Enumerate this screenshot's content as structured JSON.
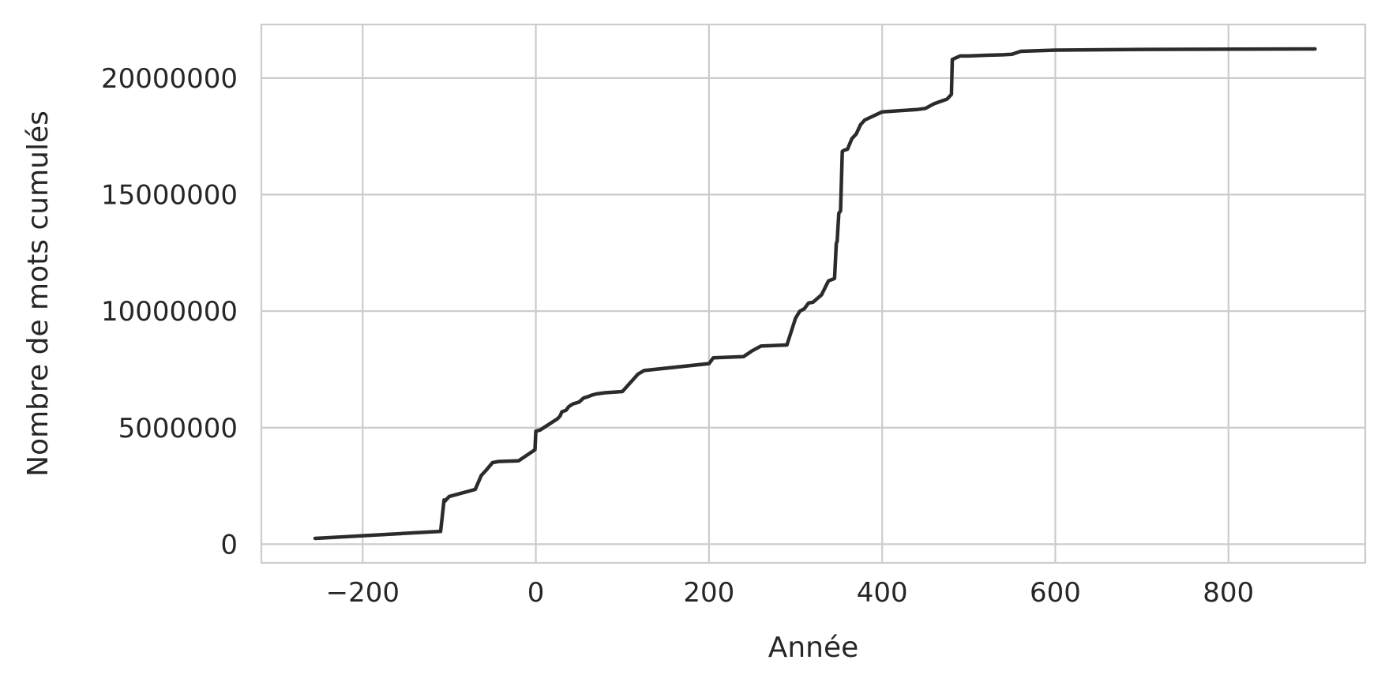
{
  "chart_data": {
    "type": "line",
    "title": "",
    "xlabel": "Année",
    "ylabel": "Nombre de mots cumulés",
    "xlim": [
      -317,
      958
    ],
    "ylim": [
      -800000,
      22300000
    ],
    "xticks": [
      -200,
      0,
      200,
      400,
      600,
      800
    ],
    "xtick_labels": [
      "−200",
      "0",
      "200",
      "400",
      "600",
      "800"
    ],
    "yticks": [
      0,
      5000000,
      10000000,
      15000000,
      20000000
    ],
    "ytick_labels": [
      "0",
      "5000000",
      "10000000",
      "15000000",
      "20000000"
    ],
    "grid": true,
    "legend": "none",
    "series": [
      {
        "color": "#2b2b2b",
        "x": [
          -255,
          -240,
          -110,
          -106,
          -105,
          -100,
          -90,
          -70,
          -63,
          -58,
          -50,
          -43,
          -20,
          -1,
          0,
          5,
          25,
          28,
          30,
          35,
          38,
          40,
          43,
          50,
          55,
          60,
          65,
          70,
          80,
          100,
          118,
          125,
          200,
          205,
          240,
          250,
          260,
          290,
          300,
          305,
          310,
          315,
          320,
          330,
          338,
          345,
          347,
          348,
          350,
          352,
          354,
          356,
          360,
          365,
          370,
          375,
          380,
          400,
          440,
          450,
          460,
          475,
          480,
          481,
          490,
          500,
          520,
          540,
          550,
          560,
          600,
          700,
          900
        ],
        "y": [
          250000,
          280000,
          550000,
          1900000,
          1850000,
          2050000,
          2150000,
          2350000,
          2950000,
          3150000,
          3500000,
          3550000,
          3580000,
          4050000,
          4850000,
          4900000,
          5380000,
          5500000,
          5680000,
          5750000,
          5900000,
          5950000,
          6020000,
          6100000,
          6270000,
          6330000,
          6400000,
          6450000,
          6500000,
          6550000,
          7300000,
          7450000,
          7750000,
          8000000,
          8050000,
          8300000,
          8500000,
          8550000,
          9700000,
          10000000,
          10100000,
          10350000,
          10380000,
          10700000,
          11300000,
          11400000,
          12900000,
          13000000,
          14200000,
          14300000,
          16850000,
          16900000,
          16950000,
          17400000,
          17600000,
          18000000,
          18200000,
          18550000,
          18650000,
          18700000,
          18900000,
          19100000,
          19300000,
          20800000,
          20950000,
          20950000,
          20980000,
          21000000,
          21020000,
          21150000,
          21200000,
          21230000,
          21250000
        ]
      }
    ]
  }
}
